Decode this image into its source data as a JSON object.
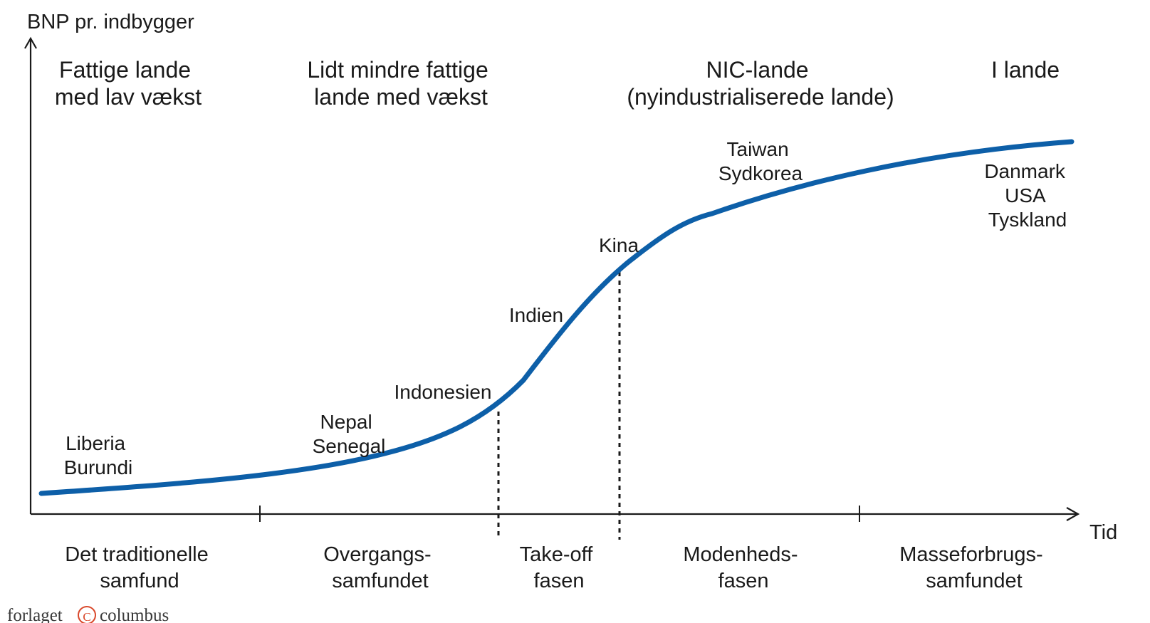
{
  "axes": {
    "y_label": "BNP pr. indbygger",
    "x_label": "Tid"
  },
  "categories": [
    {
      "lines": [
        "Fattige lande",
        "med lav vækst"
      ]
    },
    {
      "lines": [
        "Lidt mindre fattige",
        "lande med vækst"
      ]
    },
    {
      "lines": [
        "NIC-lande",
        "(nyindustrialiserede lande)"
      ]
    },
    {
      "lines": [
        "I lande"
      ]
    }
  ],
  "countries": [
    {
      "lines": [
        "Liberia",
        "Burundi"
      ]
    },
    {
      "lines": [
        "Nepal",
        "Senegal"
      ]
    },
    {
      "lines": [
        "Indonesien"
      ]
    },
    {
      "lines": [
        "Indien"
      ]
    },
    {
      "lines": [
        "Kina"
      ]
    },
    {
      "lines": [
        "Taiwan",
        "Sydkorea"
      ]
    },
    {
      "lines": [
        "Danmark",
        "USA",
        "Tyskland"
      ]
    }
  ],
  "stages": [
    {
      "lines": [
        "Det traditionelle",
        "samfund"
      ]
    },
    {
      "lines": [
        "Overgangs-",
        "samfundet"
      ]
    },
    {
      "lines": [
        "Take-off",
        "fasen"
      ]
    },
    {
      "lines": [
        "Modenheds-",
        "fasen"
      ]
    },
    {
      "lines": [
        "Masseforbrugs-",
        "samfundet"
      ]
    }
  ],
  "credit": {
    "prefix": "forlaget",
    "symbol": "C",
    "suffix": "columbus"
  },
  "colors": {
    "curve": "#0d5fa8",
    "axis": "#1a1a1a",
    "text": "#1a1a1a"
  }
}
